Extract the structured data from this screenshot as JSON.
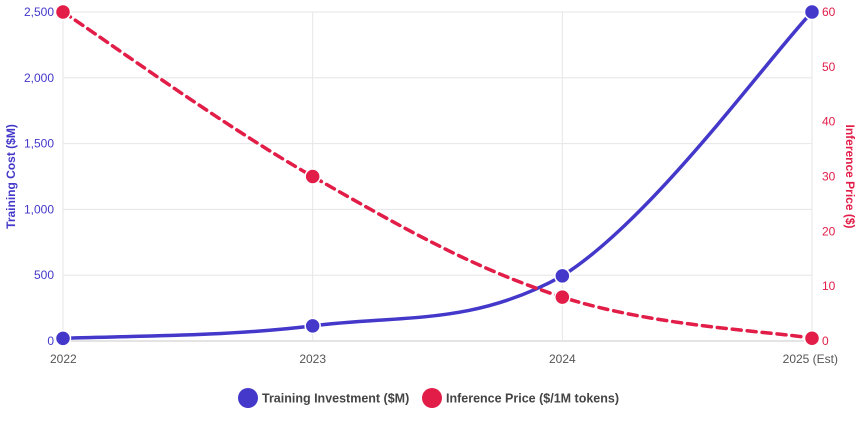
{
  "chart_data": {
    "type": "line",
    "categories": [
      "2022",
      "2023",
      "2024",
      "2025 (Est)"
    ],
    "series": [
      {
        "name": "Training Investment ($M)",
        "axis": "left",
        "values": [
          20,
          115,
          495,
          2500
        ],
        "color": "#4338ca",
        "line_style": "solid"
      },
      {
        "name": "Inference Price ($/1M tokens)",
        "axis": "right",
        "values": [
          60,
          30,
          8,
          0.5
        ],
        "color": "#e11d48",
        "line_style": "dashed"
      }
    ],
    "y_left": {
      "label": "Training Cost ($M)",
      "range": [
        0,
        2500
      ],
      "ticks": [
        0,
        500,
        1000,
        1500,
        2000,
        2500
      ],
      "tick_labels": [
        "0",
        "500",
        "1,000",
        "1,500",
        "2,000",
        "2,500"
      ],
      "color": "#4338ca"
    },
    "y_right": {
      "label": "Inference Price ($)",
      "range": [
        0,
        60
      ],
      "ticks": [
        0,
        10,
        20,
        30,
        40,
        50,
        60
      ],
      "tick_labels": [
        "0",
        "10",
        "20",
        "30",
        "40",
        "50",
        "60"
      ],
      "color": "#e11d48"
    },
    "grid": true,
    "legend_position": "bottom-center"
  }
}
